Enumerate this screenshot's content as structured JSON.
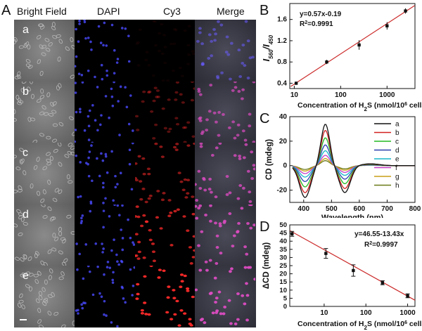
{
  "panel_labels": {
    "A": "A",
    "B": "B",
    "C": "C",
    "D": "D"
  },
  "microscopy": {
    "columns": [
      "Bright Field",
      "DAPI",
      "Cy3",
      "Merge"
    ],
    "rows": [
      "a",
      "b",
      "c",
      "d",
      "e"
    ],
    "scale_bar": true
  },
  "chart_data": [
    {
      "type": "scatter",
      "panel": "B",
      "title": "",
      "ylabel": "I560/I450",
      "xlabel": "Concentration of H2S (nmol/10^6 cells)",
      "xscale": "log",
      "xlim": [
        8,
        4000
      ],
      "ylim": [
        0.3,
        1.9
      ],
      "y_ticks": [
        0.4,
        0.8,
        1.2,
        1.6
      ],
      "x_ticks": [
        10,
        100,
        1000
      ],
      "x_tick_labels": [
        "10",
        "100",
        "1000"
      ],
      "y_tick_labels": [
        "0.4",
        "0.8",
        "1.2",
        "1.6"
      ],
      "points": [
        {
          "x": 11,
          "y": 0.4,
          "err": 0.03
        },
        {
          "x": 50,
          "y": 0.8,
          "err": 0.04
        },
        {
          "x": 250,
          "y": 1.12,
          "err": 0.09
        },
        {
          "x": 1000,
          "y": 1.48,
          "err": 0.07
        },
        {
          "x": 2500,
          "y": 1.76,
          "err": 0.05
        }
      ],
      "fit": {
        "equation": "y=0.57x-0.19",
        "r2": "R2=0.9991",
        "color": "#cc2a2a"
      }
    },
    {
      "type": "line",
      "panel": "C",
      "title": "",
      "ylabel": "CD (mdeg)",
      "xlabel": "Wavelength (nm)",
      "xlim": [
        350,
        800
      ],
      "ylim": [
        -30,
        40
      ],
      "x_ticks": [
        400,
        500,
        600,
        700,
        800
      ],
      "y_ticks": [
        -20,
        0,
        20,
        40
      ],
      "legend_position": "top-right",
      "series": [
        {
          "name": "a",
          "color": "#111111",
          "amp": 1.0
        },
        {
          "name": "b",
          "color": "#d22020",
          "amp": 0.85
        },
        {
          "name": "c",
          "color": "#22b822",
          "amp": 0.67
        },
        {
          "name": "d",
          "color": "#2a3fae",
          "amp": 0.5
        },
        {
          "name": "e",
          "color": "#19b6c9",
          "amp": 0.36
        },
        {
          "name": "f",
          "color": "#c63cc6",
          "amp": 0.25
        },
        {
          "name": "g",
          "color": "#c8a018",
          "amp": 0.17
        },
        {
          "name": "h",
          "color": "#6b7a18",
          "amp": 0.12
        }
      ]
    },
    {
      "type": "scatter",
      "panel": "D",
      "title": "",
      "ylabel": "ΔCD (mdeg)",
      "xlabel": "Concentration of H2S (nmol/10^6 cells)",
      "xscale": "log",
      "xlim": [
        1.5,
        1500
      ],
      "ylim": [
        0,
        50
      ],
      "x_ticks": [
        10,
        100,
        1000
      ],
      "y_ticks": [
        0,
        5,
        10,
        15,
        20,
        25,
        30,
        35,
        40,
        45,
        50
      ],
      "points": [
        {
          "x": 1.7,
          "y": 44.5,
          "err": 1.5
        },
        {
          "x": 11,
          "y": 32.5,
          "err": 3
        },
        {
          "x": 50,
          "y": 22,
          "err": 3.5
        },
        {
          "x": 250,
          "y": 14.5,
          "err": 1.2
        },
        {
          "x": 1000,
          "y": 6.5,
          "err": 1.2
        }
      ],
      "fit": {
        "equation": "y=46.55-13.43x",
        "r2": "R2=0.9997",
        "color": "#cc2a2a"
      }
    }
  ]
}
